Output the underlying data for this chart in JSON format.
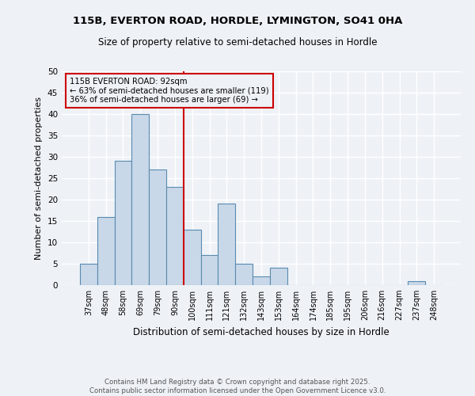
{
  "title1": "115B, EVERTON ROAD, HORDLE, LYMINGTON, SO41 0HA",
  "title2": "Size of property relative to semi-detached houses in Hordle",
  "xlabel": "Distribution of semi-detached houses by size in Hordle",
  "ylabel": "Number of semi-detached properties",
  "categories": [
    "37sqm",
    "48sqm",
    "58sqm",
    "69sqm",
    "79sqm",
    "90sqm",
    "100sqm",
    "111sqm",
    "121sqm",
    "132sqm",
    "143sqm",
    "153sqm",
    "164sqm",
    "174sqm",
    "185sqm",
    "195sqm",
    "206sqm",
    "216sqm",
    "227sqm",
    "237sqm",
    "248sqm"
  ],
  "values": [
    5,
    16,
    29,
    40,
    27,
    23,
    13,
    7,
    19,
    5,
    2,
    4,
    0,
    0,
    0,
    0,
    0,
    0,
    0,
    1,
    0
  ],
  "bar_color": "#c8d8e8",
  "bar_edge_color": "#5a8ab0",
  "highlight_color": "#cc0000",
  "annotation_title": "115B EVERTON ROAD: 92sqm",
  "annotation_line1": "← 63% of semi-detached houses are smaller (119)",
  "annotation_line2": "36% of semi-detached houses are larger (69) →",
  "ylim": [
    0,
    50
  ],
  "yticks": [
    0,
    5,
    10,
    15,
    20,
    25,
    30,
    35,
    40,
    45,
    50
  ],
  "footer1": "Contains HM Land Registry data © Crown copyright and database right 2025.",
  "footer2": "Contains public sector information licensed under the Open Government Licence v3.0.",
  "bg_color": "#eef2f7"
}
